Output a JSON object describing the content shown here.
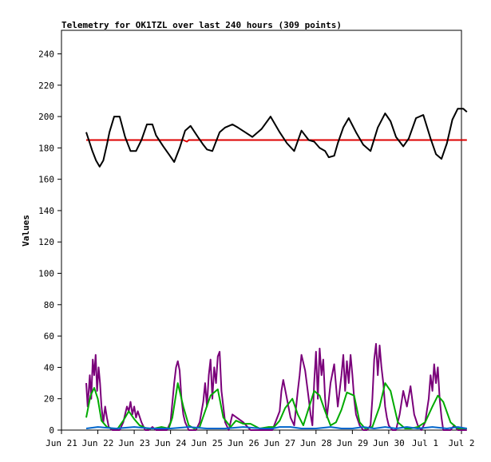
{
  "chart_data": {
    "type": "line",
    "title": "Telemetry for OK1TZL over last 240 hours (309 points)",
    "xlabel": "",
    "ylabel": "Values",
    "xlim": [
      "Jun 21",
      "Jul 2"
    ],
    "ylim": [
      0,
      255
    ],
    "y_ticks": [
      0,
      20,
      40,
      60,
      80,
      100,
      120,
      140,
      160,
      180,
      200,
      220,
      240
    ],
    "x_ticks": [
      "Jun 21",
      "Jun 22",
      "Jun 23",
      "Jun 24",
      "Jun 25",
      "Jun 26",
      "Jun 27",
      "Jun 28",
      "Jun 29",
      "Jun 30",
      "Jul 1",
      "Jul 2"
    ],
    "grid": false,
    "legend": "none",
    "series": [
      {
        "color": "#000000",
        "x": [
          0.68,
          0.75,
          0.85,
          0.95,
          1.05,
          1.15,
          1.25,
          1.32,
          1.45,
          1.6,
          1.75,
          1.9,
          2.05,
          2.2,
          2.35,
          2.5,
          2.6,
          2.8,
          2.95,
          3.1,
          3.25,
          3.4,
          3.55,
          3.75,
          3.9,
          4.0,
          4.15,
          4.35,
          4.5,
          4.7,
          4.85,
          5.05,
          5.25,
          5.5,
          5.75,
          6.0,
          6.2,
          6.4,
          6.6,
          6.8,
          6.95,
          7.1,
          7.25,
          7.35,
          7.5,
          7.6,
          7.75,
          7.9,
          8.1,
          8.3,
          8.5,
          8.7,
          8.9,
          9.05,
          9.2,
          9.4,
          9.55,
          9.75,
          9.95,
          10.15,
          10.3,
          10.45,
          10.6,
          10.75,
          10.9,
          11.05,
          11.15
        ],
        "values": [
          190,
          185,
          178,
          172,
          168,
          172,
          182,
          190,
          200,
          200,
          187,
          178,
          178,
          185,
          195,
          195,
          188,
          181,
          176,
          171,
          180,
          191,
          194,
          187,
          182,
          179,
          178,
          190,
          193,
          195,
          193,
          190,
          187,
          192,
          200,
          190,
          183,
          178,
          191,
          185,
          184,
          180,
          178,
          174,
          175,
          183,
          193,
          199,
          190,
          182,
          178,
          193,
          202,
          197,
          187,
          181,
          186,
          199,
          201,
          186,
          176,
          173,
          183,
          198,
          205,
          205,
          203
        ]
      },
      {
        "color": "#dd0000",
        "x": [
          0.68,
          1.5,
          2.5,
          3.35,
          3.45,
          3.5,
          4.5,
          5.5,
          6.5,
          7.5,
          8.5,
          9.5,
          10.5,
          11.15
        ],
        "values": [
          185,
          185,
          185,
          185,
          184,
          185,
          185,
          185,
          185,
          185,
          185,
          185,
          185,
          185
        ]
      },
      {
        "color": "#00aa00",
        "x": [
          0.68,
          0.8,
          0.9,
          1.0,
          1.1,
          1.25,
          1.4,
          1.55,
          1.7,
          1.85,
          2.0,
          2.15,
          2.35,
          2.55,
          2.75,
          2.95,
          3.05,
          3.2,
          3.35,
          3.5,
          3.65,
          3.8,
          3.95,
          4.1,
          4.3,
          4.45,
          4.65,
          4.8,
          5.0,
          5.2,
          5.45,
          5.7,
          5.85,
          6.0,
          6.15,
          6.35,
          6.5,
          6.65,
          6.8,
          6.95,
          7.1,
          7.25,
          7.4,
          7.55,
          7.7,
          7.85,
          8.05,
          8.2,
          8.35,
          8.55,
          8.75,
          8.9,
          9.05,
          9.25,
          9.45,
          9.6,
          9.8,
          10.0,
          10.2,
          10.35,
          10.5,
          10.7,
          10.9,
          11.05,
          11.15
        ],
        "values": [
          8,
          22,
          27,
          20,
          6,
          2,
          1,
          1,
          6,
          12,
          7,
          3,
          1,
          1,
          2,
          1,
          8,
          30,
          15,
          3,
          1,
          2,
          12,
          22,
          26,
          8,
          2,
          6,
          4,
          4,
          1,
          2,
          2,
          6,
          14,
          20,
          10,
          3,
          14,
          25,
          22,
          12,
          3,
          5,
          13,
          24,
          22,
          5,
          1,
          2,
          15,
          30,
          25,
          5,
          1,
          1,
          2,
          5,
          15,
          22,
          18,
          5,
          1,
          1,
          1
        ]
      },
      {
        "color": "#0066cc",
        "x": [
          0.68,
          1.0,
          1.5,
          2.0,
          2.5,
          3.0,
          3.5,
          4.0,
          4.5,
          5.0,
          5.5,
          5.8,
          6.0,
          6.3,
          6.6,
          7.0,
          7.4,
          7.7,
          8.0,
          8.3,
          8.6,
          8.9,
          9.2,
          9.5,
          9.8,
          10.2,
          10.6,
          10.9,
          11.15
        ],
        "values": [
          1,
          2,
          1,
          2,
          1,
          1,
          2,
          1,
          1,
          2,
          1,
          1,
          2,
          2,
          1,
          1,
          2,
          1,
          1,
          2,
          1,
          2,
          1,
          2,
          1,
          2,
          1,
          2,
          1
        ]
      },
      {
        "color": "#7a007a",
        "x": [
          0.68,
          0.72,
          0.78,
          0.82,
          0.86,
          0.9,
          0.94,
          0.98,
          1.02,
          1.06,
          1.1,
          1.15,
          1.2,
          1.25,
          1.3,
          1.4,
          1.5,
          1.6,
          1.7,
          1.75,
          1.8,
          1.85,
          1.9,
          1.95,
          2.0,
          2.05,
          2.1,
          2.2,
          2.3,
          2.4,
          2.5,
          2.6,
          2.7,
          2.8,
          2.9,
          3.0,
          3.1,
          3.15,
          3.2,
          3.25,
          3.3,
          3.35,
          3.4,
          3.5,
          3.6,
          3.7,
          3.8,
          3.9,
          3.95,
          4.0,
          4.05,
          4.1,
          4.15,
          4.2,
          4.25,
          4.3,
          4.35,
          4.4,
          4.45,
          4.5,
          4.6,
          4.7,
          5.0,
          5.2,
          5.4,
          5.6,
          5.8,
          6.0,
          6.05,
          6.1,
          6.2,
          6.3,
          6.4,
          6.5,
          6.55,
          6.6,
          6.7,
          6.8,
          6.85,
          6.9,
          6.95,
          7.0,
          7.05,
          7.1,
          7.15,
          7.2,
          7.25,
          7.3,
          7.4,
          7.5,
          7.6,
          7.7,
          7.75,
          7.8,
          7.85,
          7.9,
          7.95,
          8.0,
          8.05,
          8.1,
          8.2,
          8.3,
          8.4,
          8.5,
          8.55,
          8.6,
          8.65,
          8.7,
          8.75,
          8.8,
          8.85,
          8.9,
          8.95,
          9.0,
          9.1,
          9.2,
          9.3,
          9.4,
          9.5,
          9.6,
          9.7,
          9.8,
          9.9,
          10.0,
          10.1,
          10.15,
          10.2,
          10.25,
          10.3,
          10.35,
          10.4,
          10.45,
          10.5,
          10.6,
          10.7,
          10.8,
          10.9,
          11.0,
          11.1,
          11.15
        ],
        "values": [
          30,
          15,
          35,
          20,
          45,
          35,
          48,
          25,
          40,
          30,
          15,
          5,
          15,
          8,
          2,
          0,
          0,
          0,
          5,
          10,
          15,
          12,
          18,
          10,
          15,
          8,
          12,
          5,
          0,
          0,
          2,
          0,
          0,
          0,
          0,
          5,
          30,
          40,
          44,
          38,
          20,
          10,
          5,
          0,
          0,
          0,
          5,
          18,
          30,
          15,
          35,
          45,
          20,
          40,
          30,
          47,
          50,
          25,
          15,
          5,
          0,
          10,
          5,
          0,
          0,
          0,
          0,
          12,
          25,
          32,
          20,
          8,
          3,
          25,
          35,
          48,
          38,
          20,
          10,
          3,
          30,
          50,
          20,
          52,
          35,
          45,
          20,
          8,
          30,
          42,
          15,
          35,
          48,
          25,
          44,
          30,
          48,
          35,
          20,
          10,
          3,
          0,
          0,
          3,
          20,
          45,
          55,
          35,
          54,
          40,
          30,
          15,
          8,
          3,
          0,
          0,
          10,
          25,
          15,
          28,
          10,
          3,
          0,
          5,
          20,
          35,
          25,
          42,
          30,
          40,
          20,
          8,
          0,
          0,
          0,
          3,
          0,
          0,
          0,
          0
        ]
      }
    ]
  }
}
